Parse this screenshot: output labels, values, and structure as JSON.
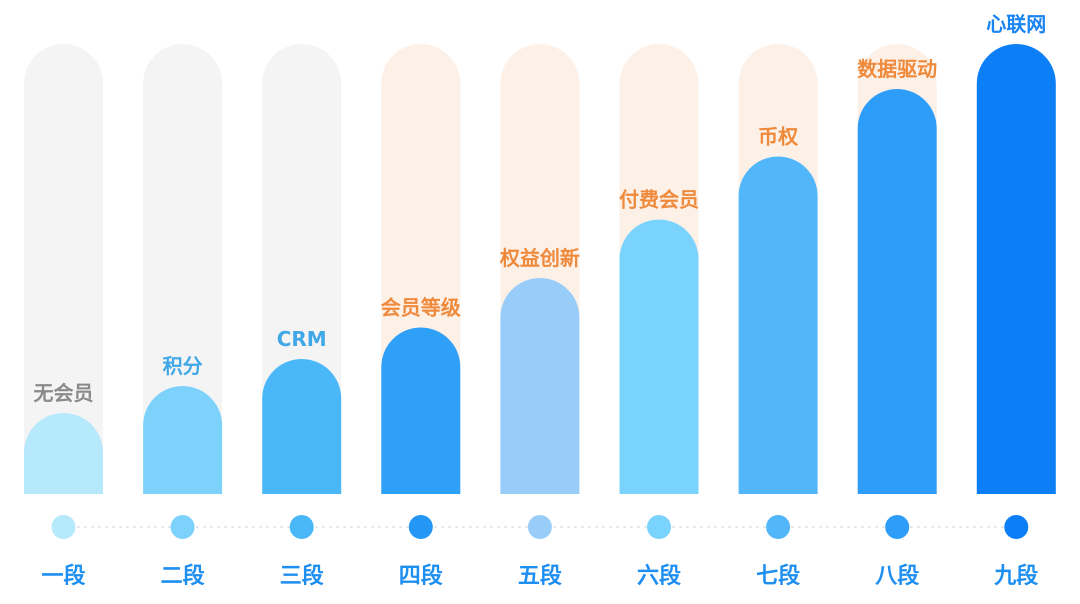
{
  "chart_data": {
    "type": "bar",
    "title": "",
    "xlabel": "",
    "ylabel": "",
    "ylim": [
      0,
      100
    ],
    "grid": false,
    "legend": "none",
    "categories": [
      "一段",
      "二段",
      "三段",
      "四段",
      "五段",
      "六段",
      "七段",
      "八段",
      "九段"
    ],
    "series": [
      {
        "values": [
          18,
          24,
          30,
          37,
          48,
          61,
          75,
          90,
          100
        ]
      }
    ],
    "bar_labels": [
      "无会员",
      "积分",
      "CRM",
      "会员等级",
      "权益创新",
      "付费会员",
      "币权",
      "数据驱动",
      "心联网"
    ],
    "track_groups": [
      "gray",
      "gray",
      "gray",
      "orange",
      "orange",
      "orange",
      "orange",
      "orange",
      "orange"
    ]
  },
  "colors": {
    "bars": [
      "#b6e9fc",
      "#7dd2fc",
      "#4ab8f8",
      "#2ea0f7",
      "#98cdf9",
      "#79d3fd",
      "#51b7fa",
      "#2e9dfa",
      "#0c7ff6"
    ],
    "dots": [
      "#b6e9fc",
      "#7dd2fc",
      "#4ab8f8",
      "#2396f6",
      "#98cdf9",
      "#79d3fd",
      "#51b7fa",
      "#2e9dfa",
      "#0c7ff6"
    ],
    "track_gray": "#f4f4f4",
    "track_orange": "#fdf0e7",
    "label_gray": "#8a8a8a",
    "label_blue": "#41a8e8",
    "label_orange": "#ef8a3c",
    "label_dark_blue": "#1a85f2",
    "category_text": "#1e8ff0",
    "connector": "#cfd7e0"
  },
  "label_colors": [
    "gray",
    "blue",
    "blue",
    "orange",
    "orange",
    "orange",
    "orange",
    "orange",
    "dark_blue"
  ]
}
